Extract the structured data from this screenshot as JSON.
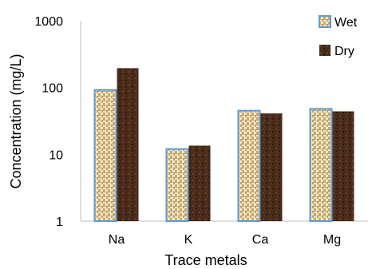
{
  "chart_data": {
    "type": "bar",
    "title": "",
    "xlabel": "Trace metals",
    "ylabel": "Concentration (mg/L)",
    "categories": [
      "Na",
      "K",
      "Ca",
      "Mg"
    ],
    "series": [
      {
        "name": "Wet",
        "values": [
          92,
          12,
          45,
          48
        ],
        "color": "#e8d6a8",
        "texture": "woven-burlap"
      },
      {
        "name": "Dry",
        "values": [
          195,
          13.5,
          41,
          44
        ],
        "color": "#4e2f1c",
        "texture": "dark-mottled"
      }
    ],
    "yscale": "log",
    "ylim": [
      1,
      1000
    ],
    "yticks": [
      "1",
      "10",
      "100",
      "1000"
    ],
    "grid": false,
    "legend_position": "top-right"
  }
}
